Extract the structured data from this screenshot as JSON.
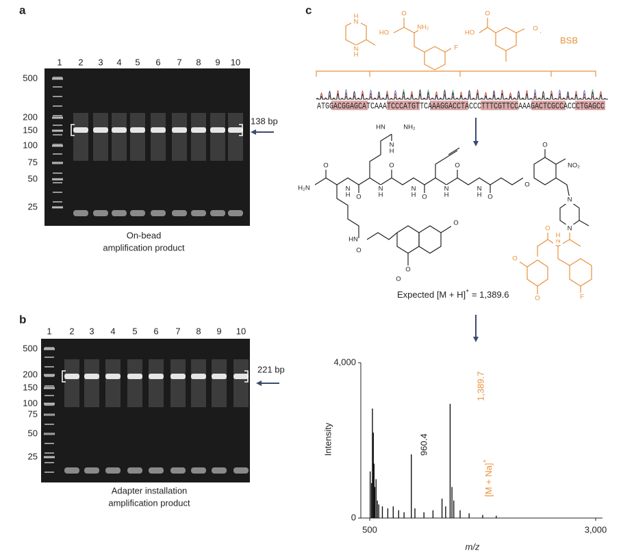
{
  "panel_labels": [
    "a",
    "b",
    "c"
  ],
  "gel_a": {
    "lanes": [
      "1",
      "2",
      "3",
      "4",
      "5",
      "6",
      "7",
      "8",
      "9",
      "10"
    ],
    "ladder": [
      "500",
      "200",
      "150",
      "100",
      "75",
      "50",
      "25"
    ],
    "band_label": "138 bp",
    "caption": [
      "On-bead",
      "amplification product"
    ]
  },
  "gel_b": {
    "lanes": [
      "1",
      "2",
      "3",
      "4",
      "5",
      "6",
      "7",
      "8",
      "9",
      "10"
    ],
    "ladder": [
      "500",
      "200",
      "150",
      "100",
      "75",
      "50",
      "25"
    ],
    "band_label": "221 bp",
    "caption": [
      "Adapter installation",
      "amplification product"
    ]
  },
  "panel_c": {
    "tag": "BSB",
    "sequence": "ATGGACGGAGCATCAAATCCCATGTTCAAAGGACCTACCCTTTCGTTCCAAAGACTCGCCACCCTGAGCC",
    "atoms": [
      "H",
      "N",
      "N",
      "H",
      "HO",
      "O",
      "NH₂",
      "F",
      "HO",
      "O",
      "O",
      "HN",
      "NH₂",
      "N",
      "H",
      "H₂N",
      "O",
      "N",
      "H",
      "O",
      "N",
      "H",
      "O",
      "N",
      "H",
      "O",
      "N",
      "H",
      "O",
      "N",
      "H",
      "O",
      "O",
      "O",
      "NO₂",
      "N",
      "N",
      "HN",
      "O",
      "O",
      "O",
      "O",
      "N",
      "H",
      "O",
      "O",
      "O",
      "F"
    ],
    "expected": "Expected [M + H]",
    "expected_sup": "+",
    "expected_value": " = 1,389.6"
  },
  "chart_data": {
    "type": "spectrum",
    "x_label": "m/z",
    "y_label": "Intensity",
    "xlim": [
      500,
      3000
    ],
    "ylim": [
      0,
      4000
    ],
    "xticks": [
      500,
      {
        "value": 3000,
        "label": "3,000"
      }
    ],
    "yticks": [
      0,
      {
        "value": 4000,
        "label": "4,000"
      }
    ],
    "x": [
      505,
      520,
      530,
      540,
      548,
      556,
      570,
      585,
      600,
      640,
      700,
      760,
      820,
      880,
      960.4,
      1000,
      1100,
      1200,
      1300,
      1340,
      1389.7,
      1410,
      1430,
      1500,
      1600,
      1750,
      1900
    ],
    "values": [
      1200,
      900,
      2820,
      2200,
      1400,
      800,
      1000,
      450,
      350,
      300,
      250,
      300,
      200,
      150,
      1640,
      250,
      150,
      200,
      500,
      300,
      2940,
      800,
      450,
      200,
      120,
      80,
      60
    ],
    "peak_labels": [
      "960.4",
      "1,389.7"
    ],
    "adduct": "[M + Na]",
    "adduct_sup": "+"
  }
}
